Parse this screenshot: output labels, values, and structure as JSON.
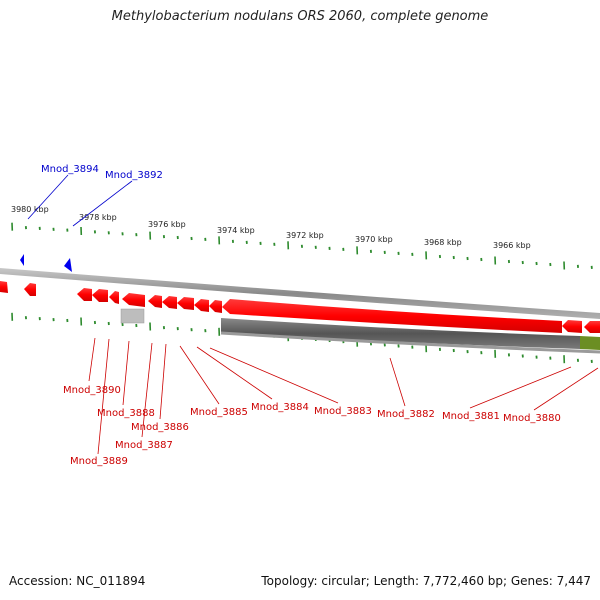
{
  "title": "Methylobacterium nodulans ORS 2060, complete genome",
  "footer": {
    "accession": "Accession: NC_011894",
    "stats": "Topology: circular; Length: 7,772,460 bp; Genes: 7,447"
  },
  "colors": {
    "forward_gene": "#ff0000",
    "reverse_gene": "#0000ee",
    "rna_gene": "#bbbbbb",
    "track": "#888888",
    "pseudo_gene": "#666666",
    "other_feature": "#6b8e23",
    "tick": "#2e8b2e"
  },
  "kbp_labels": [
    "3980 kbp",
    "3978 kbp",
    "3976 kbp",
    "3974 kbp",
    "3972 kbp",
    "3970 kbp",
    "3968 kbp",
    "3966 kbp"
  ],
  "top_genes": [
    "Mnod_3894",
    "Mnod_3892"
  ],
  "bottom_genes": [
    "Mnod_3890",
    "Mnod_3888",
    "Mnod_3886",
    "Mnod_3887",
    "Mnod_3889",
    "Mnod_3885",
    "Mnod_3884",
    "Mnod_3883",
    "Mnod_3882",
    "Mnod_3881",
    "Mnod_3880"
  ]
}
